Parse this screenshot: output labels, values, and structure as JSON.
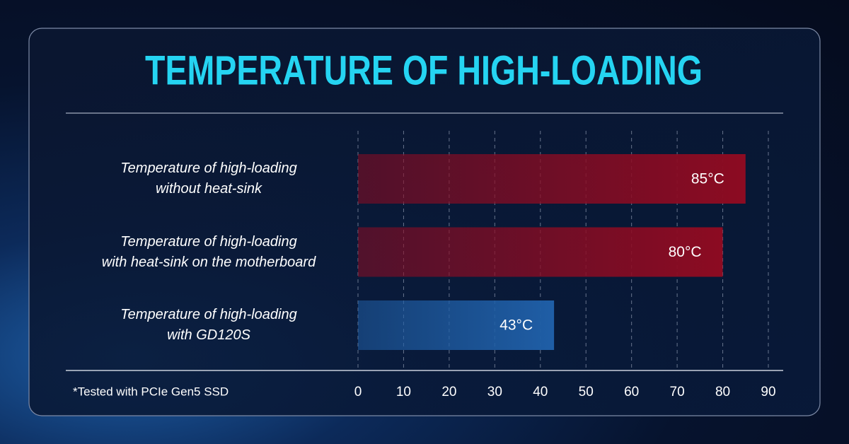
{
  "chart_data": {
    "type": "hbar",
    "title": "TEMPERATURE OF HIGH-LOADING",
    "categories": [
      "Temperature of high-loading\nwithout heat-sink",
      "Temperature of high-loading\nwith heat-sink on the motherboard",
      "Temperature of high-loading\nwith GD120S"
    ],
    "values": [
      85,
      80,
      43
    ],
    "value_labels": [
      "85°C",
      "80°C",
      "43°C"
    ],
    "colors": [
      "#8c0b22",
      "#8c0b22",
      "#1f5ea6"
    ],
    "xlim": [
      0,
      90
    ],
    "xticks": [
      0,
      10,
      20,
      30,
      40,
      50,
      60,
      70,
      80,
      90
    ],
    "grid": true,
    "footnote": "*Tested with PCIe Gen5 SSD"
  }
}
